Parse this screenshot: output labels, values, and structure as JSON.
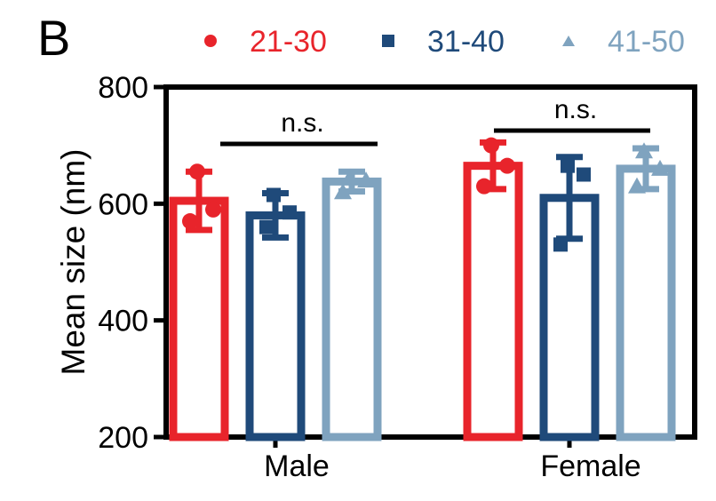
{
  "panel_label": "B",
  "chart_data": {
    "type": "bar",
    "title": "",
    "xlabel": "",
    "ylabel": "Mean size (nm)",
    "ylim": [
      200,
      800
    ],
    "yticks": [
      200,
      400,
      600,
      800
    ],
    "ytick_labels": [
      "200",
      "400",
      "600",
      "800"
    ],
    "categories": [
      "Male",
      "Female"
    ],
    "grid": false,
    "legend_position": "top",
    "series": [
      {
        "name": "21-30",
        "marker": "circle",
        "color": "#e8242b",
        "values": [
          605,
          665
        ],
        "error": [
          50,
          40
        ],
        "points": [
          [
            655,
            590,
            570
          ],
          [
            700,
            665,
            630
          ]
        ]
      },
      {
        "name": "31-40",
        "marker": "square",
        "color": "#1f4a7a",
        "values": [
          580,
          610
        ],
        "error": [
          38,
          70
        ],
        "points": [
          [
            615,
            585,
            560
          ],
          [
            665,
            650,
            530
          ]
        ]
      },
      {
        "name": "41-50",
        "marker": "triangle",
        "color": "#7fa3bf",
        "values": [
          638,
          660
        ],
        "error": [
          17,
          35
        ],
        "points": [
          [
            645,
            640,
            620
          ],
          [
            690,
            660,
            630
          ]
        ]
      }
    ],
    "annotations": [
      {
        "label": "n.s.",
        "category": "Male"
      },
      {
        "label": "n.s.",
        "category": "Female"
      }
    ]
  }
}
